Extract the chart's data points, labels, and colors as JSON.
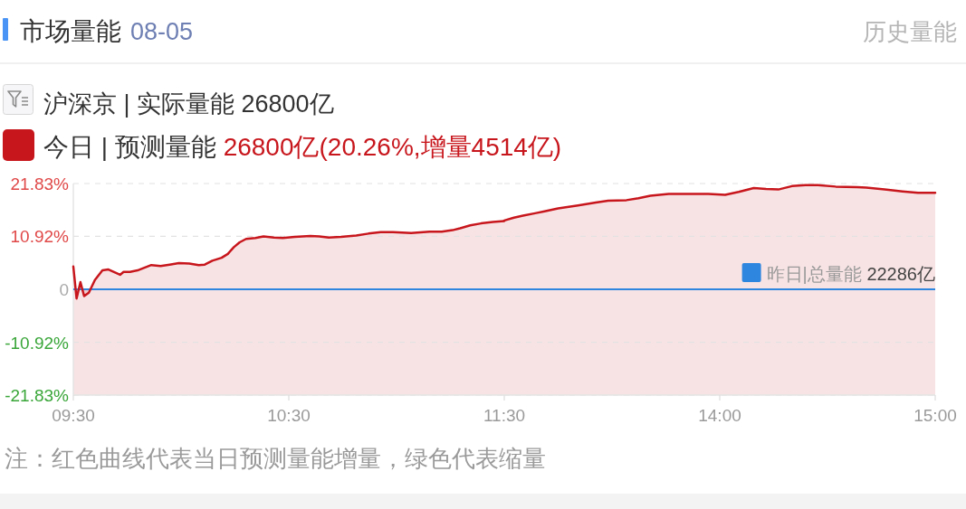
{
  "chart_data": [
    {
      "type": "area",
      "title": "市场量能",
      "subtitle": "08-05",
      "annotations": [
        "历史量能",
        "沪深京 | 实际量能 26800亿",
        "注：红色曲线代表当日预测量能增量，绿色代表缩量"
      ],
      "x": [
        9.5,
        9.515,
        9.533,
        9.55,
        9.572,
        9.6,
        9.635,
        9.663,
        9.717,
        9.733,
        9.763,
        9.798,
        9.827,
        9.862,
        9.905,
        9.947,
        9.99,
        10.038,
        10.082,
        10.11,
        10.145,
        10.188,
        10.217,
        10.245,
        10.272,
        10.302,
        10.345,
        10.383,
        10.43,
        10.472,
        10.528,
        10.6,
        10.642,
        10.685,
        10.742,
        10.813,
        10.87,
        10.927,
        10.983,
        11.068,
        11.153,
        11.21,
        11.26,
        11.295,
        11.342,
        11.392,
        11.447,
        11.5
      ],
      "series": [
        {
          "name": "今日 | 预测量能 26800亿(20.26%,增量4514亿)",
          "color": "#c8161d",
          "values": [
            4.7,
            -1.9,
            1.5,
            -1.4,
            -0.7,
            1.9,
            3.9,
            4.1,
            3.0,
            3.6,
            3.6,
            3.9,
            4.4,
            5.0,
            4.8,
            5.1,
            5.4,
            5.3,
            5.0,
            5.1,
            5.9,
            6.5,
            7.3,
            8.7,
            9.7,
            10.4,
            10.6,
            10.9,
            10.7,
            10.6,
            10.8,
            11.0,
            10.9,
            10.7,
            10.8,
            11.1,
            11.5,
            11.8,
            11.8,
            11.6,
            11.9,
            11.9,
            12.2,
            12.6,
            13.2,
            13.6,
            13.9,
            14.1
          ]
        }
      ],
      "xlim": [
        9.5,
        11.5
      ],
      "xticks": [
        {
          "value": 9.5,
          "label": "09:30"
        },
        {
          "value": 10.5,
          "label": "10:30"
        },
        {
          "value": 11.5,
          "label": "11:30"
        }
      ],
      "ylim": [
        -21.83,
        21.83
      ],
      "yticks": [
        {
          "value": 21.83,
          "label": "21.83%"
        },
        {
          "value": 10.92,
          "label": "10.92%"
        },
        0,
        {
          "value": -10.92,
          "label": "-10.92%"
        },
        {
          "value": -21.83,
          "label": "-21.83%"
        }
      ],
      "grid": "y",
      "legend": "top left",
      "bands": [
        {
          "axis": "y",
          "from": -21.83,
          "to": 0,
          "color": "#f8e3e4"
        }
      ],
      "ref_lines": [
        {
          "axis": "y",
          "value": 0,
          "color": "#2e86de"
        }
      ]
    },
    {
      "type": "area",
      "x": [
        13,
        13.045,
        13.087,
        13.143,
        13.187,
        13.25,
        13.342,
        13.425,
        13.482,
        13.567,
        13.623,
        13.678,
        13.763,
        13.863,
        13.947,
        14.025,
        14.088,
        14.158,
        14.215,
        14.272,
        14.335,
        14.398,
        14.455,
        14.538,
        14.638,
        14.68,
        14.765,
        14.848,
        14.92,
        15
      ],
      "series": [
        {
          "color": "#c8161d",
          "values": [
            14.2,
            14.8,
            15.2,
            15.7,
            16.1,
            16.7,
            17.3,
            17.9,
            18.3,
            18.4,
            18.8,
            19.3,
            19.7,
            19.7,
            19.7,
            19.5,
            20.1,
            20.9,
            20.7,
            20.6,
            21.3,
            21.5,
            21.5,
            21.2,
            21.1,
            21.0,
            20.6,
            20.2,
            19.9,
            19.9
          ]
        }
      ],
      "xlim": [
        13,
        15
      ],
      "xticks": [
        {
          "value": 14,
          "label": "14:00"
        },
        {
          "value": 15,
          "label": "15:00"
        }
      ],
      "ylim": [
        -21.83,
        21.83
      ],
      "yticks": [
        21.83,
        10.92,
        0,
        -10.92,
        -21.83
      ],
      "tick_labels": "x",
      "grid": "y",
      "bands": [
        {
          "axis": "y",
          "from": -21.83,
          "to": 0,
          "color": "#f8e3e4"
        }
      ],
      "ref_lines": [
        {
          "axis": "y",
          "value": 0,
          "label": "昨日|总量能 22286亿",
          "color": "#2e86de"
        }
      ]
    }
  ]
}
